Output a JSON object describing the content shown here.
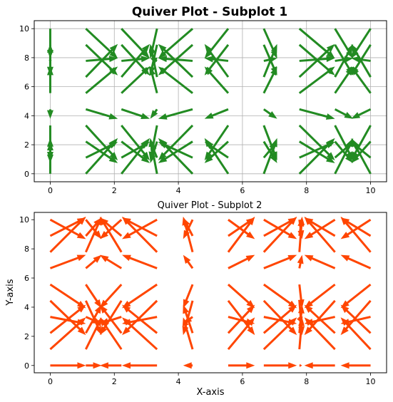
{
  "chart_data": [
    {
      "type": "quiver",
      "title": "Quiver Plot - Subplot 1",
      "title_weight": "bold",
      "xlabel": "",
      "ylabel": "",
      "xlim": [
        -0.5,
        10.5
      ],
      "ylim": [
        -0.55,
        10.55
      ],
      "xticks": [
        0,
        2,
        4,
        6,
        8,
        10
      ],
      "yticks": [
        0,
        2,
        4,
        6,
        8,
        10
      ],
      "grid": true,
      "color": "#228B22",
      "field": {
        "x": [
          0,
          1.111,
          2.222,
          3.333,
          4.444,
          5.556,
          6.667,
          7.778,
          8.889,
          10
        ],
        "y": [
          0,
          1.111,
          2.222,
          3.333,
          4.444,
          5.556,
          6.667,
          7.778,
          8.889,
          10
        ],
        "u": "sin(x)",
        "v": "cos(y)"
      }
    },
    {
      "type": "quiver",
      "title": "Quiver Plot - Subplot 2",
      "title_weight": "normal",
      "xlabel": "X-axis",
      "ylabel": "Y-axis",
      "xlim": [
        -0.5,
        10.5
      ],
      "ylim": [
        -0.5,
        10.5
      ],
      "xticks": [
        0,
        2,
        4,
        6,
        8,
        10
      ],
      "yticks": [
        0,
        2,
        4,
        6,
        8,
        10
      ],
      "grid": false,
      "color": "#FF4500",
      "field": {
        "x": [
          0,
          1.111,
          2.222,
          3.333,
          4.444,
          5.556,
          6.667,
          7.778,
          8.889,
          10
        ],
        "y": [
          0,
          1.111,
          2.222,
          3.333,
          4.444,
          5.556,
          6.667,
          7.778,
          8.889,
          10
        ],
        "u": "cos(x)",
        "v": "sin(y)"
      }
    }
  ]
}
